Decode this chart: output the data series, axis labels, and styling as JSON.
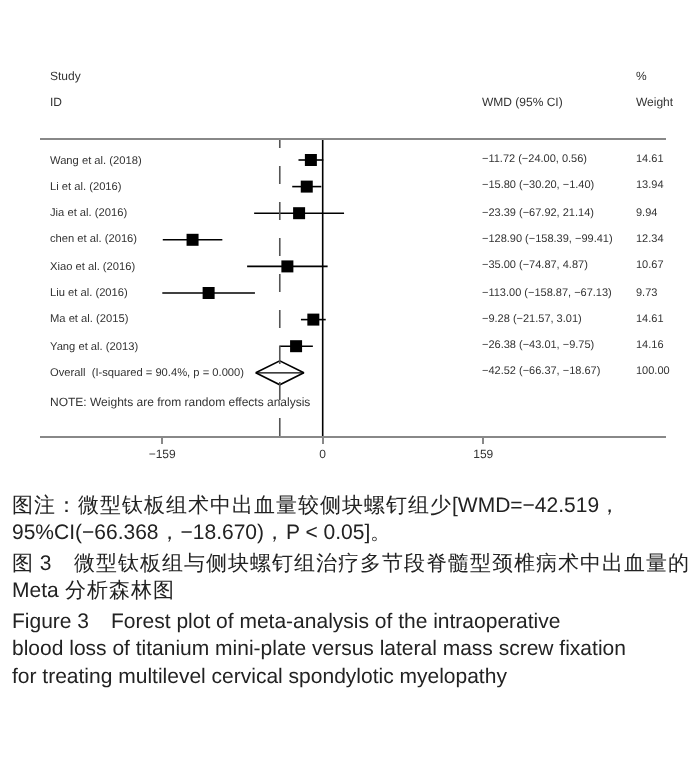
{
  "chart_data": {
    "type": "scatter",
    "orientation": "horizontal",
    "marker": "square",
    "categories": [
      "Wang et al. (2018)",
      "Li et al. (2016)",
      "Jia et al. (2016)",
      "chen et al. (2016)",
      "Xiao et al. (2016)",
      "Liu et al. (2016)",
      "Ma et al. (2015)",
      "Yang et al. (2013)",
      "Overall  (I-squared = 90.4%, p = 0.000)"
    ],
    "series": [
      {
        "color": "#000000",
        "values": [
          -11.72,
          -15.8,
          -23.39,
          -128.9,
          -35.0,
          -113.0,
          -9.28,
          -26.38,
          null
        ],
        "errors": [
          [
            -24.0,
            0.56
          ],
          [
            -30.2,
            -1.4
          ],
          [
            -67.92,
            21.14
          ],
          [
            -158.39,
            -99.41
          ],
          [
            -74.87,
            4.87
          ],
          [
            -158.87,
            -67.13
          ],
          [
            -21.57,
            3.01
          ],
          [
            -43.01,
            -9.75
          ],
          null
        ]
      },
      {
        "color": "#000000",
        "marker": "diamond",
        "values": [
          null,
          null,
          null,
          null,
          null,
          null,
          null,
          null,
          -42.52
        ],
        "errors": [
          null,
          null,
          null,
          null,
          null,
          null,
          null,
          null,
          [
            -66.37,
            -18.67
          ]
        ]
      }
    ],
    "xlim": [
      -280,
      340
    ],
    "xticks": [
      {
        "value": -159,
        "label": "−159"
      },
      0,
      159
    ],
    "ref_lines": [
      {
        "axis": "x",
        "value": 0,
        "color": "#000000",
        "line_style": "solid"
      },
      {
        "axis": "x",
        "value": -42.52,
        "color": "#555555",
        "line_style": "dashed"
      }
    ],
    "annotations": [
      "Study",
      "ID",
      "WMD (95% CI)",
      "%",
      "Weight",
      "−11.72 (−24.00, 0.56)",
      "−15.80 (−30.20, −1.40)",
      "−23.39 (−67.92, 21.14)",
      "−128.90 (−158.39, −99.41)",
      "−35.00 (−74.87, 4.87)",
      "−113.00 (−158.87, −67.13)",
      "−9.28 (−21.57, 3.01)",
      "−26.38 (−43.01, −9.75)",
      "−42.52 (−66.37, −18.67)",
      "14.61",
      "13.94",
      "9.94",
      "12.34",
      "10.67",
      "9.73",
      "14.61",
      "14.16",
      "100.00",
      "NOTE: Weights are from random effects analysis",
      "图注：微型钛板组术中出血量较侧块螺钉组少[WMD=−42.519，95%CI(−66.368，−18.670)，P < 0.05]。",
      "图 3　微型钛板组与侧块螺钉组治疗多节段脊髓型颈椎病术中出血量的 Meta 分析森林图",
      "Figure 3　Forest plot of meta-analysis of the intraoperative blood loss of titanium mini-plate versus lateral mass screw fixation for treating multilevel cervical spondylotic myelopathy"
    ]
  }
}
